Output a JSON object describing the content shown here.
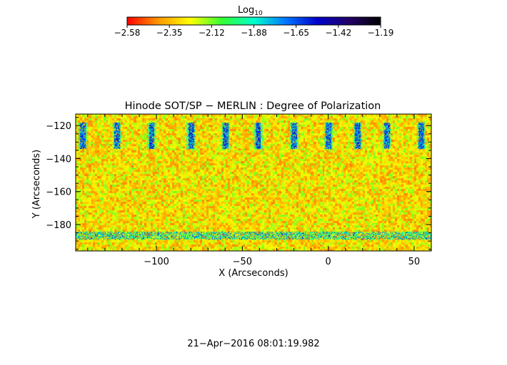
{
  "colorbar": {
    "label_main": "Log",
    "label_sub": "10",
    "ticks": [
      "−2.58",
      "−2.35",
      "−2.12",
      "−1.88",
      "−1.65",
      "−1.42",
      "−1.19"
    ],
    "colors": [
      "#ff0000",
      "#ff9900",
      "#ffff00",
      "#33ff33",
      "#00ffcc",
      "#0077ff",
      "#0000cc",
      "#220066",
      "#000000"
    ]
  },
  "footer": {
    "timestamp": "21−Apr−2016 08:01:19.982"
  },
  "chart_data": {
    "type": "heatmap",
    "title": "Hinode SOT/SP − MERLIN : Degree of Polarization",
    "xlabel": "X (Arcseconds)",
    "ylabel": "Y (Arcseconds)",
    "xlim": [
      -147,
      60
    ],
    "ylim": [
      -196,
      -113
    ],
    "x_ticks": [
      -100,
      -50,
      0,
      50
    ],
    "x_tick_labels": [
      "−100",
      "−50",
      "0",
      "50"
    ],
    "y_ticks": [
      -180,
      -160,
      -140,
      -120
    ],
    "y_tick_labels": [
      "−180",
      "−160",
      "−140",
      "−120"
    ],
    "value_range": [
      -2.58,
      -1.19
    ],
    "high_value_columns_x": [
      -143,
      -123,
      -103,
      -80,
      -60,
      -41,
      -20,
      0,
      17,
      34,
      54
    ],
    "high_value_band_y": [
      -134,
      -118
    ],
    "high_value_row_y": [
      -189,
      -184
    ]
  }
}
